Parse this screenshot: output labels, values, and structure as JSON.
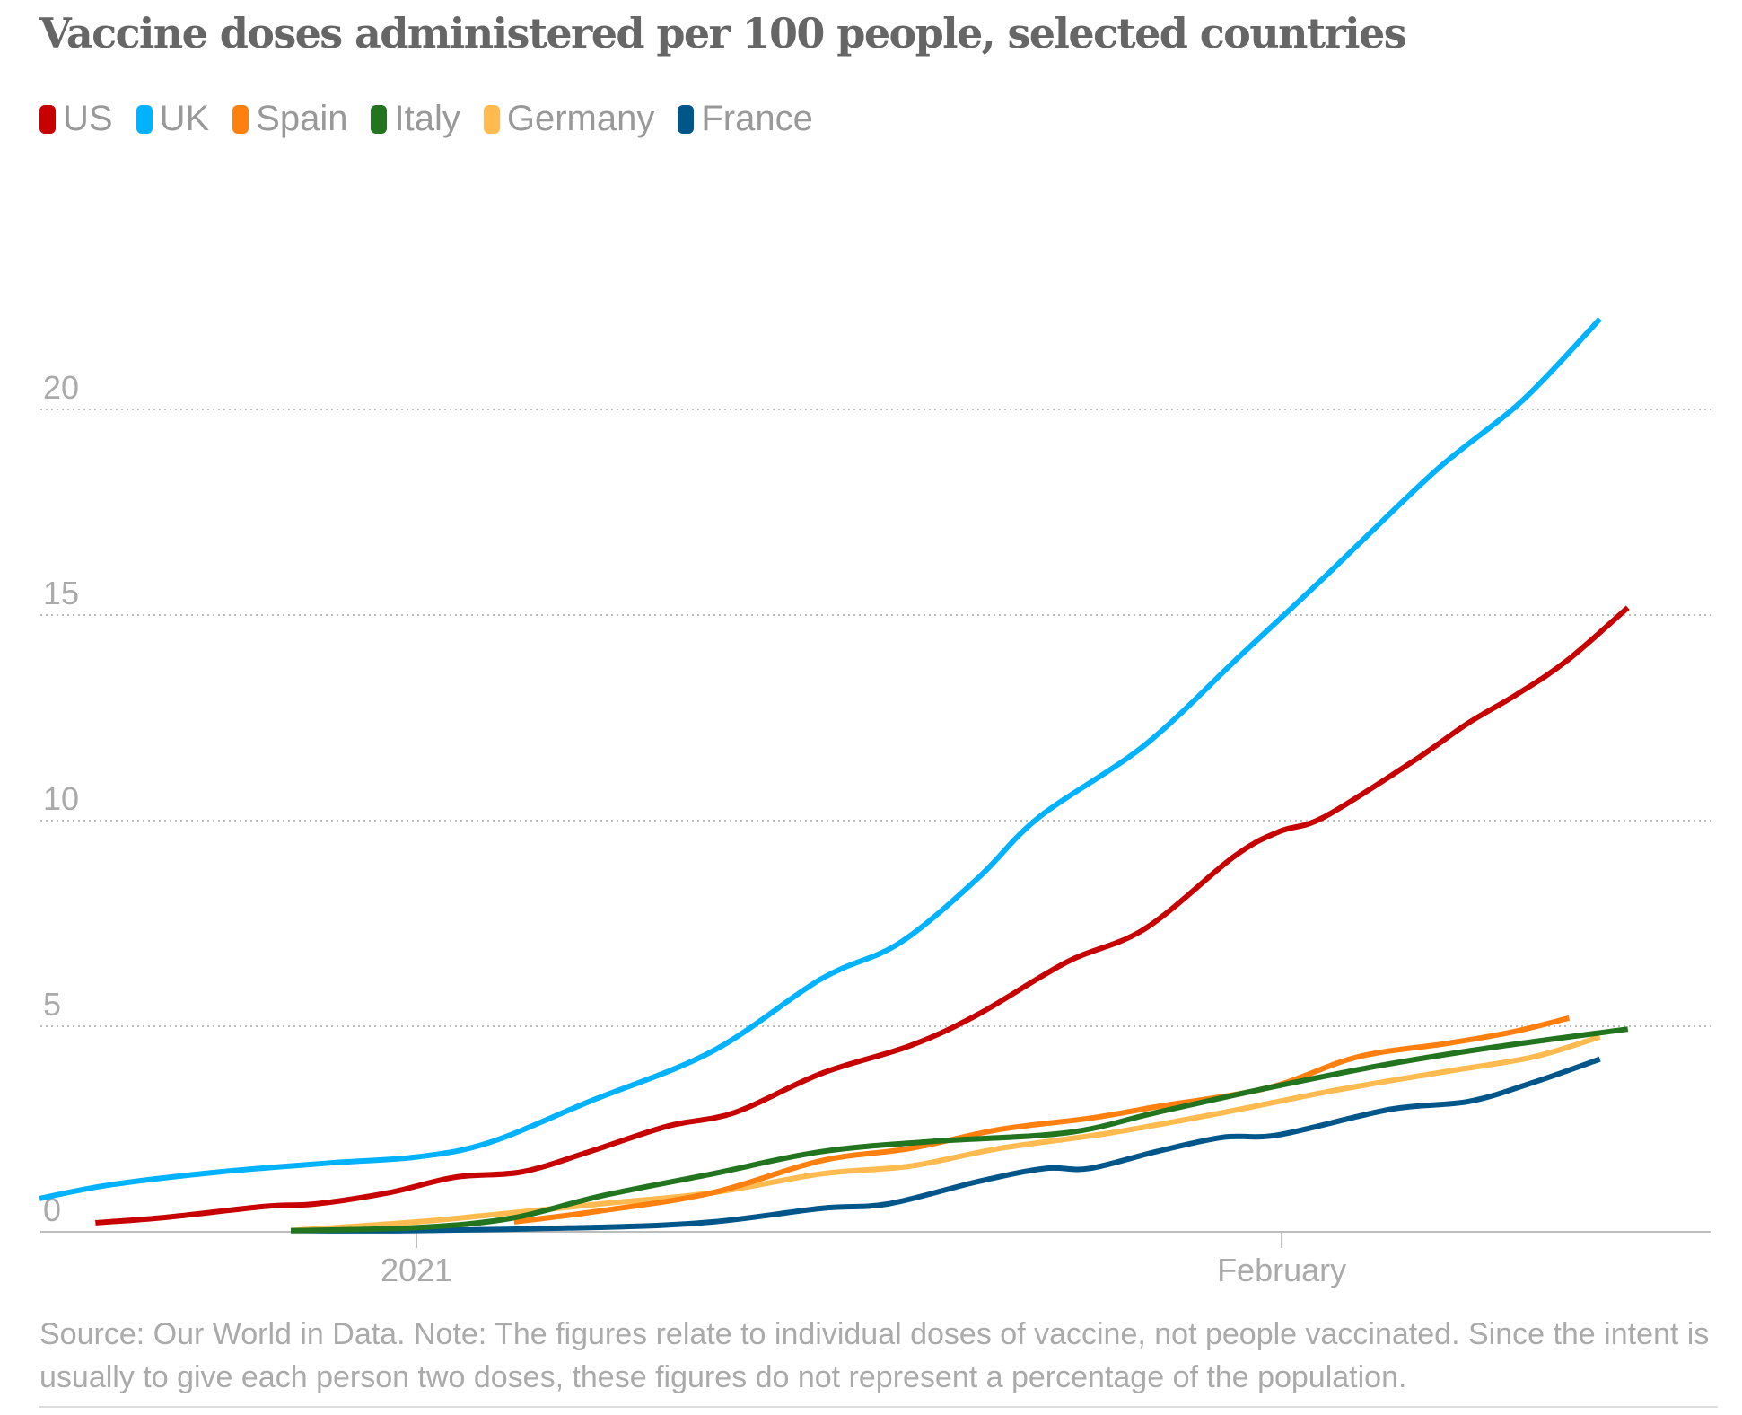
{
  "chart_data": {
    "type": "line",
    "title": "Vaccine doses administered per 100 people, selected countries",
    "xlabel": "",
    "ylabel": "",
    "x_unit": "days since 2021-01-01",
    "xlim": [
      -13.5,
      46.4
    ],
    "ylim": [
      0,
      22.5
    ],
    "yticks": [
      0,
      5,
      10,
      15,
      20
    ],
    "ytick_labels": [
      "0",
      "5",
      "10",
      "15",
      "20"
    ],
    "xticks": [
      0,
      31
    ],
    "xtick_labels": [
      "2021",
      "February"
    ],
    "grid": "horizontal dotted",
    "legend_position": "top-left",
    "series": [
      {
        "name": "US",
        "color": "#c70000",
        "x": [
          -11.5,
          -9,
          -5.4,
          -3.6,
          -1,
          1.4,
          3.8,
          6.2,
          9,
          11.4,
          14.5,
          17.7,
          20.1,
          23.3,
          26.1,
          29.3,
          30.9,
          32.5,
          35.7,
          37.7,
          39.4,
          41.2,
          43.4
        ],
        "y": [
          0.22,
          0.35,
          0.62,
          0.68,
          0.95,
          1.33,
          1.46,
          1.95,
          2.57,
          2.9,
          3.85,
          4.53,
          5.28,
          6.56,
          7.37,
          9.13,
          9.73,
          10.08,
          11.44,
          12.38,
          13.06,
          13.88,
          15.18
        ]
      },
      {
        "name": "UK",
        "color": "#00b2ff",
        "x": [
          -13.5,
          -11,
          -7,
          -3,
          0,
          2.6,
          6.2,
          10.6,
          14.5,
          17.3,
          20.1,
          22.3,
          26.1,
          29.5,
          32.5,
          36.5,
          39.6,
          42.4
        ],
        "y": [
          0.81,
          1.14,
          1.46,
          1.68,
          1.82,
          2.17,
          3.17,
          4.39,
          6.15,
          7.02,
          8.59,
          10.08,
          11.84,
          14.0,
          15.9,
          18.5,
          20.2,
          22.2
        ]
      },
      {
        "name": "Spain",
        "color": "#ff7f0f",
        "x": [
          3.5,
          6.6,
          10.6,
          14.5,
          17.7,
          20.9,
          24.1,
          26.5,
          30.5,
          33.7,
          36.9,
          39.2,
          41.3
        ],
        "y": [
          0.24,
          0.51,
          0.95,
          1.73,
          2.03,
          2.49,
          2.76,
          3.04,
          3.5,
          4.25,
          4.58,
          4.85,
          5.2
        ]
      },
      {
        "name": "Italy",
        "color": "#22741e",
        "x": [
          -4.5,
          0,
          3.4,
          6.6,
          10.6,
          14.5,
          18.5,
          23.3,
          26.5,
          30.5,
          34.5,
          38.4,
          43.4
        ],
        "y": [
          0.03,
          0.1,
          0.33,
          0.87,
          1.41,
          1.95,
          2.2,
          2.41,
          2.9,
          3.5,
          4.04,
          4.47,
          4.93
        ]
      },
      {
        "name": "Germany",
        "color": "#ffbb50",
        "x": [
          -4.5,
          0,
          3.4,
          6.6,
          10.6,
          14.5,
          17.7,
          20.9,
          24.9,
          28.9,
          32.9,
          36.9,
          40,
          42.4
        ],
        "y": [
          0.03,
          0.24,
          0.46,
          0.68,
          0.95,
          1.41,
          1.6,
          2.03,
          2.41,
          2.9,
          3.44,
          3.9,
          4.25,
          4.74
        ]
      },
      {
        "name": "France",
        "color": "#005689",
        "x": [
          -4.5,
          0,
          6.6,
          10.6,
          14.5,
          16.9,
          20.1,
          22.5,
          24.1,
          26.5,
          28.9,
          30.9,
          34.9,
          37.7,
          40,
          42.4
        ],
        "y": [
          0.03,
          0.03,
          0.11,
          0.24,
          0.57,
          0.68,
          1.22,
          1.54,
          1.54,
          1.95,
          2.3,
          2.36,
          2.98,
          3.17,
          3.63,
          4.2
        ]
      }
    ]
  },
  "header": {
    "title": "Vaccine doses administered per 100 people, selected countries"
  },
  "legend": [
    {
      "label": "US",
      "color": "#c70000"
    },
    {
      "label": "UK",
      "color": "#00b2ff"
    },
    {
      "label": "Spain",
      "color": "#ff7f0f"
    },
    {
      "label": "Italy",
      "color": "#22741e"
    },
    {
      "label": "Germany",
      "color": "#ffbb50"
    },
    {
      "label": "France",
      "color": "#005689"
    }
  ],
  "footer": {
    "source": "Source: Our World in Data. Note: The figures relate to individual doses of vaccine, not people vaccinated. Since the intent is usually to give each person two doses, these figures do not represent a percentage of the population."
  }
}
